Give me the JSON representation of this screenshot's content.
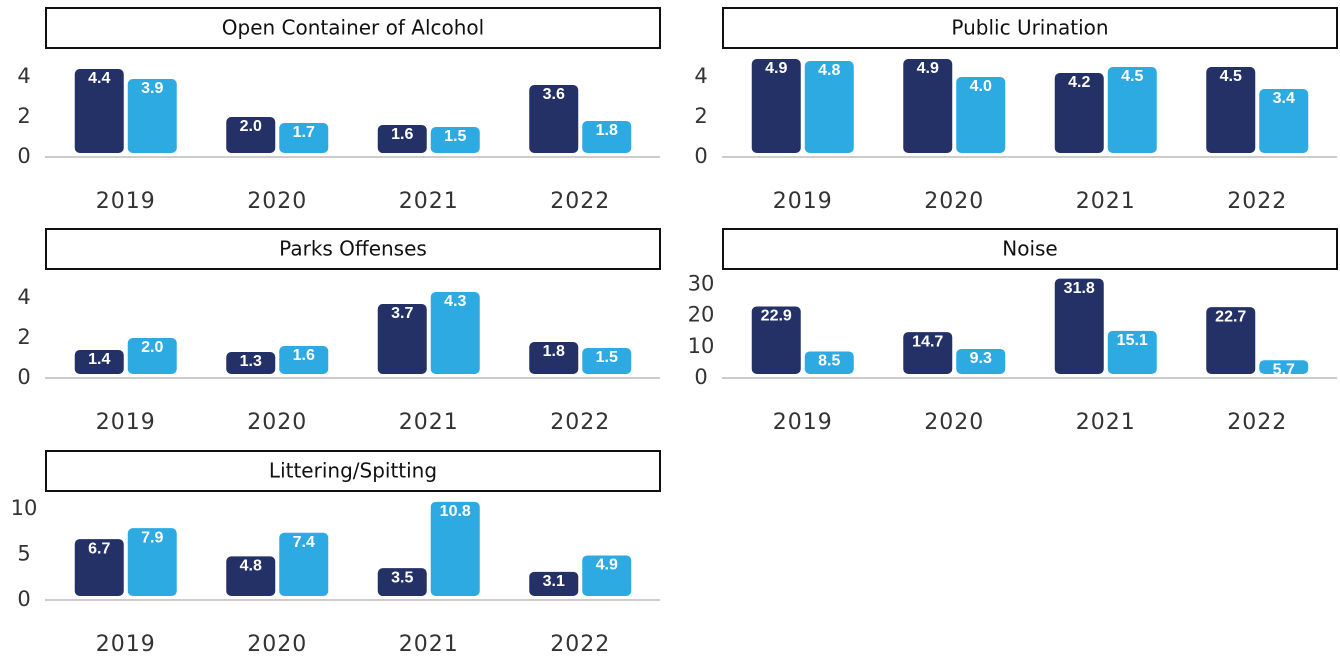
{
  "chart_data": [
    {
      "type": "bar",
      "title": "Open Container of Alcohol",
      "categories": [
        "2019",
        "2020",
        "2021",
        "2022"
      ],
      "series": [
        {
          "color": "#233166",
          "values": [
            4.4,
            2.0,
            1.6,
            3.6
          ],
          "value_labels": [
            "4.4",
            "2.0",
            "1.6",
            "3.6"
          ]
        },
        {
          "color": "#2eaae3",
          "values": [
            3.9,
            1.7,
            1.5,
            1.8
          ]
        }
      ],
      "ylim": [
        0,
        5
      ],
      "yticks": [
        0,
        2,
        4
      ]
    },
    {
      "type": "bar",
      "title": "Public Urination",
      "categories": [
        "2019",
        "2020",
        "2021",
        "2022"
      ],
      "series": [
        {
          "color": "#233166",
          "values": [
            4.9,
            4.9,
            4.2,
            4.5
          ]
        },
        {
          "color": "#2eaae3",
          "values": [
            4.8,
            4.0,
            4.5,
            3.4
          ],
          "value_labels": [
            "4.8",
            "4.0",
            "4.5",
            "3.4"
          ]
        }
      ],
      "ylim": [
        0,
        5
      ],
      "yticks": [
        0,
        2,
        4
      ]
    },
    {
      "type": "bar",
      "title": "Parks Offenses",
      "categories": [
        "2019",
        "2020",
        "2021",
        "2022"
      ],
      "series": [
        {
          "color": "#233166",
          "values": [
            1.4,
            1.3,
            3.7,
            1.8
          ]
        },
        {
          "color": "#2eaae3",
          "values": [
            2.0,
            1.6,
            4.3,
            1.5
          ],
          "value_labels": [
            "2.0",
            "1.6",
            "4.3",
            "1.5"
          ]
        }
      ],
      "ylim": [
        0,
        5
      ],
      "yticks": [
        0,
        2,
        4
      ]
    },
    {
      "type": "bar",
      "title": "Noise",
      "categories": [
        "2019",
        "2020",
        "2021",
        "2022"
      ],
      "series": [
        {
          "color": "#233166",
          "values": [
            22.9,
            14.7,
            31.8,
            22.7
          ]
        },
        {
          "color": "#2eaae3",
          "values": [
            8.5,
            9.3,
            15.1,
            5.7
          ]
        }
      ],
      "ylim": [
        0,
        32
      ],
      "yticks": [
        0,
        10,
        20,
        30
      ]
    },
    {
      "type": "bar",
      "title": "Littering/Spitting",
      "categories": [
        "2019",
        "2020",
        "2021",
        "2022"
      ],
      "series": [
        {
          "color": "#233166",
          "values": [
            6.7,
            4.8,
            3.5,
            3.1
          ]
        },
        {
          "color": "#2eaae3",
          "values": [
            7.9,
            7.4,
            10.8,
            4.9
          ]
        }
      ],
      "ylim": [
        0,
        11
      ],
      "yticks": [
        0,
        5,
        10
      ]
    }
  ]
}
